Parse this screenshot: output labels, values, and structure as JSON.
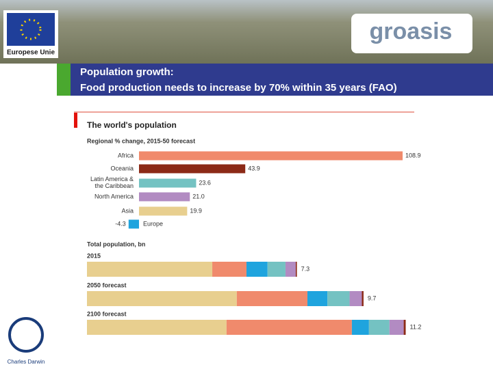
{
  "slide": {
    "heading": "Population growth:",
    "subheading": "Food production needs to increase by 70% within 35 years (FAO)",
    "eu_logo": "Europese Unie",
    "brand_logo": "groasis",
    "foundation_logo": "Charles Darwin"
  },
  "chart_data": [
    {
      "type": "bar",
      "orientation": "horizontal",
      "title": "The world's population",
      "subtitle": "Regional % change, 2015-50 forecast",
      "categories": [
        "Africa",
        "Oceania",
        "Latin America & the Caribbean",
        "North America",
        "Asia",
        "Europe"
      ],
      "values": [
        108.9,
        43.9,
        23.6,
        21.0,
        19.9,
        -4.3
      ],
      "value_labels": [
        "108.9",
        "43.9",
        "23.6",
        "21.0",
        "19.9",
        "-4.3"
      ],
      "colors": [
        "#f08a6c",
        "#8c2a17",
        "#74c2c2",
        "#b28bc2",
        "#e8cf8f",
        "#1fa4de"
      ]
    },
    {
      "type": "stacked-bar",
      "orientation": "horizontal",
      "title": "Total population, bn",
      "categories": [
        "2015",
        "2050 forecast",
        "2100 forecast"
      ],
      "totals": [
        7.3,
        9.7,
        11.2
      ],
      "series": [
        {
          "color": "#e8cf8f",
          "values": [
            4.4,
            5.26,
            4.9
          ]
        },
        {
          "color": "#f08a6c",
          "values": [
            1.2,
            2.48,
            4.4
          ]
        },
        {
          "color": "#1fa4de",
          "values": [
            0.74,
            0.7,
            0.6
          ]
        },
        {
          "color": "#74c2c2",
          "values": [
            0.63,
            0.78,
            0.72
          ]
        },
        {
          "color": "#b28bc2",
          "values": [
            0.36,
            0.43,
            0.5
          ]
        },
        {
          "color": "#8c2a17",
          "values": [
            0.04,
            0.06,
            0.07
          ]
        }
      ]
    }
  ]
}
